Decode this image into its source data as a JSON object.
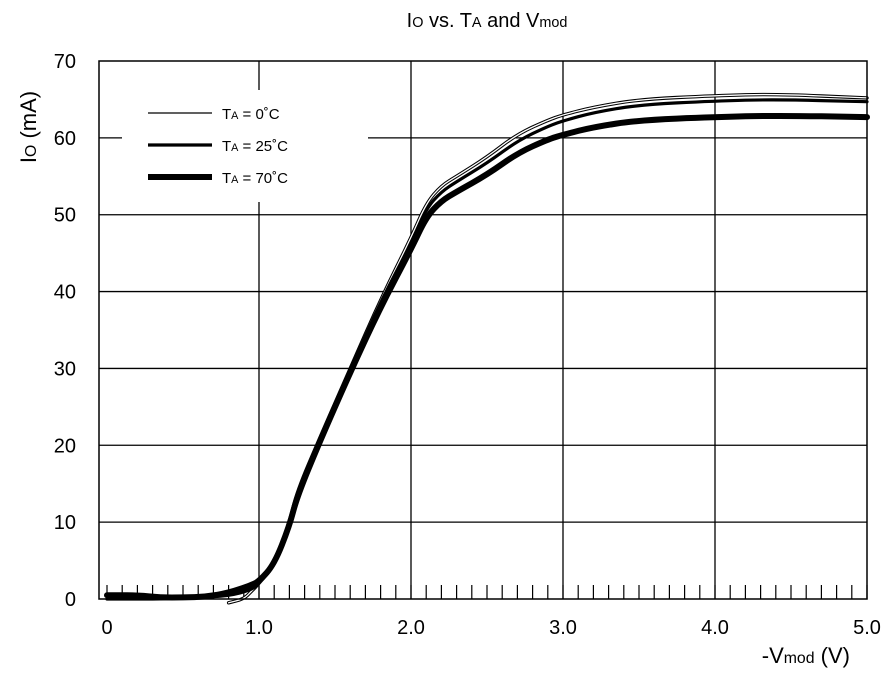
{
  "chart_data": {
    "type": "line",
    "title": {
      "main": "I",
      "main_sub": "O",
      "mid": " vs. T",
      "mid_sub": "A",
      "tail": " and V",
      "tail_sub": "mod"
    },
    "xlabel": {
      "prefix": "-V",
      "sub": "mod",
      "suffix": " (V)"
    },
    "ylabel": {
      "prefix": "I",
      "sub": "O",
      "suffix": " (mA)"
    },
    "xlim": [
      0,
      5.0
    ],
    "ylim": [
      0,
      70
    ],
    "xticks": [
      0,
      1.0,
      2.0,
      3.0,
      4.0,
      5.0
    ],
    "xtick_labels": [
      "0",
      "1.0",
      "2.0",
      "3.0",
      "4.0",
      "5.0"
    ],
    "yticks": [
      0,
      10,
      20,
      30,
      40,
      50,
      60,
      70
    ],
    "ytick_labels": [
      "0",
      "10",
      "20",
      "30",
      "40",
      "50",
      "60",
      "70"
    ],
    "minor_x_step": 0.1,
    "grid": true,
    "legend_position": "top-left",
    "series": [
      {
        "name": {
          "prefix": "T",
          "sub": "A",
          "suffix": " = 0˚C"
        },
        "line_weight": "thin",
        "x": [
          0.8,
          0.9,
          0.95,
          1.0,
          1.1,
          1.2,
          1.25,
          1.4,
          1.6,
          1.8,
          2.0,
          2.1,
          2.2,
          2.3,
          2.5,
          2.7,
          2.9,
          3.0,
          3.2,
          3.5,
          4.0,
          4.4,
          5.0
        ],
        "y": [
          -0.5,
          0.0,
          1.0,
          2.0,
          4.5,
          10.0,
          14.0,
          21.0,
          30.0,
          39.0,
          47.0,
          51.5,
          53.8,
          55.0,
          57.5,
          60.5,
          62.3,
          63.0,
          64.0,
          65.0,
          65.5,
          65.7,
          65.2
        ]
      },
      {
        "name": {
          "prefix": "T",
          "sub": "A",
          "suffix": " = 25˚C"
        },
        "line_weight": "medium",
        "x": [
          0.0,
          0.2,
          0.4,
          0.6,
          0.8,
          0.95,
          1.0,
          1.1,
          1.2,
          1.25,
          1.4,
          1.6,
          1.8,
          2.0,
          2.1,
          2.2,
          2.3,
          2.5,
          2.7,
          2.9,
          3.0,
          3.2,
          3.5,
          4.0,
          4.4,
          5.0
        ],
        "y": [
          0.0,
          0.0,
          0.0,
          0.2,
          0.4,
          1.2,
          2.0,
          4.3,
          9.7,
          13.8,
          20.8,
          29.8,
          38.7,
          46.2,
          50.8,
          53.0,
          54.3,
          56.7,
          59.6,
          61.5,
          62.2,
          63.3,
          64.3,
          64.8,
          65.0,
          64.7
        ]
      },
      {
        "name": {
          "prefix": "T",
          "sub": "A",
          "suffix": " = 70˚C"
        },
        "line_weight": "thick",
        "x": [
          0.0,
          0.2,
          0.35,
          0.5,
          0.65,
          0.8,
          0.95,
          1.0,
          1.1,
          1.2,
          1.25,
          1.4,
          1.6,
          1.8,
          2.0,
          2.1,
          2.2,
          2.3,
          2.5,
          2.7,
          2.9,
          3.0,
          3.2,
          3.5,
          4.0,
          4.4,
          5.0
        ],
        "y": [
          0.5,
          0.5,
          0.2,
          0.2,
          0.3,
          0.8,
          1.8,
          2.3,
          4.5,
          9.5,
          13.3,
          20.5,
          29.5,
          38.0,
          45.5,
          49.7,
          51.8,
          53.0,
          55.2,
          58.0,
          59.8,
          60.4,
          61.4,
          62.3,
          62.7,
          62.9,
          62.7
        ]
      }
    ]
  }
}
